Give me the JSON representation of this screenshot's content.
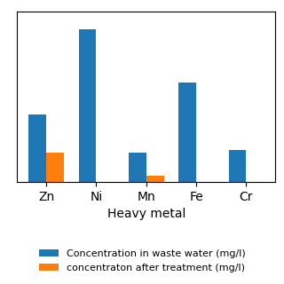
{
  "chart_data": {
    "type": "bar",
    "categories": [
      "Zn",
      "Ni",
      "Mn",
      "Fe",
      "Cr"
    ],
    "series": [
      {
        "name": "Concentration in waste water (mg/l)",
        "values": [
          4.2,
          9.5,
          1.8,
          6.2,
          2.0
        ]
      },
      {
        "name": "concentraton after treatment (mg/l)",
        "values": [
          1.8,
          0.0,
          0.35,
          0.0,
          0.0
        ]
      }
    ],
    "xlabel": "Heavy metal",
    "ylim": [
      0,
      10.64
    ],
    "tick_labels": "x",
    "grid": false
  }
}
